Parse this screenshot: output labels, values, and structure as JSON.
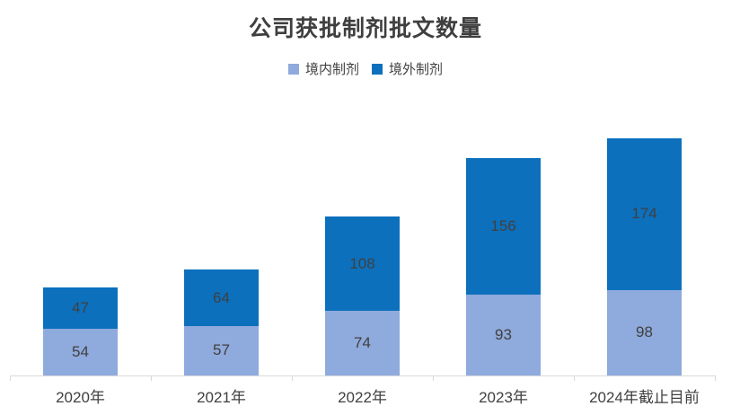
{
  "title": "公司获批制剂批文数量",
  "legend": {
    "position": "top",
    "items": [
      {
        "label": "境内制剂",
        "color": "#8FAADC"
      },
      {
        "label": "境外制剂",
        "color": "#0C70BD"
      }
    ]
  },
  "colors": {
    "domestic_series": "#8FAADC",
    "overseas_series": "#0C70BD",
    "axis_line": "#d9d9d9",
    "text": "#404040",
    "title_text": "#3f3f3f",
    "background": "#ffffff"
  },
  "chart_data": {
    "type": "bar",
    "stacked": true,
    "title": "公司获批制剂批文数量",
    "xlabel": "",
    "ylabel": "",
    "ylim": [
      0,
      280
    ],
    "grid": false,
    "legend_position": "top",
    "data_labels": "center",
    "categories": [
      "2020年",
      "2021年",
      "2022年",
      "2023年",
      "2024年截止目前"
    ],
    "series": [
      {
        "name": "境内制剂",
        "color": "#8FAADC",
        "values": [
          54,
          57,
          74,
          93,
          98
        ]
      },
      {
        "name": "境外制剂",
        "color": "#0C70BD",
        "values": [
          47,
          64,
          108,
          156,
          174
        ]
      }
    ]
  }
}
